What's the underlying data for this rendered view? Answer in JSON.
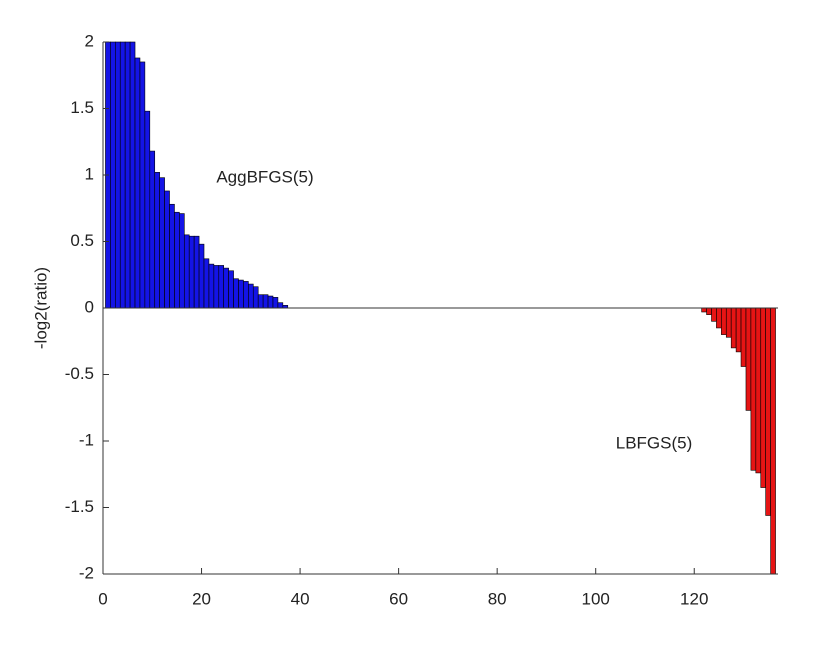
{
  "chart_data": {
    "type": "bar",
    "ylabel": "-log2(ratio)",
    "annotations": [
      "AggBFGS(5)",
      "LBFGS(5)"
    ],
    "x": [
      1,
      2,
      3,
      4,
      5,
      6,
      7,
      8,
      9,
      10,
      11,
      12,
      13,
      14,
      15,
      16,
      17,
      18,
      19,
      20,
      21,
      22,
      23,
      24,
      25,
      26,
      27,
      28,
      29,
      30,
      31,
      32,
      33,
      34,
      35,
      36,
      37,
      38,
      39,
      40,
      41,
      42,
      43,
      44,
      45,
      46,
      47,
      48,
      49,
      50,
      51,
      52,
      53,
      54,
      55,
      56,
      57,
      58,
      59,
      60,
      61,
      62,
      63,
      64,
      65,
      66,
      67,
      68,
      69,
      70,
      71,
      72,
      73,
      74,
      75,
      76,
      77,
      78,
      79,
      80,
      81,
      82,
      83,
      84,
      85,
      86,
      87,
      88,
      89,
      90,
      91,
      92,
      93,
      94,
      95,
      96,
      97,
      98,
      99,
      100,
      101,
      102,
      103,
      104,
      105,
      106,
      107,
      108,
      109,
      110,
      111,
      112,
      113,
      114,
      115,
      116,
      117,
      118,
      119,
      120,
      121,
      122,
      123,
      124,
      125,
      126,
      127,
      128,
      129,
      130,
      131,
      132,
      133,
      134,
      135,
      136
    ],
    "values": [
      2,
      2,
      2,
      2,
      2,
      2,
      1.88,
      1.85,
      1.48,
      1.18,
      1.02,
      0.98,
      0.88,
      0.78,
      0.72,
      0.71,
      0.55,
      0.54,
      0.54,
      0.48,
      0.37,
      0.33,
      0.32,
      0.32,
      0.3,
      0.28,
      0.22,
      0.21,
      0.2,
      0.18,
      0.16,
      0.1,
      0.1,
      0.09,
      0.08,
      0.04,
      0.02,
      0,
      0,
      0,
      0,
      0,
      0,
      0,
      0,
      0,
      0,
      0,
      0,
      0,
      0,
      0,
      0,
      0,
      0,
      0,
      0,
      0,
      0,
      0,
      0,
      0,
      0,
      0,
      0,
      0,
      0,
      0,
      0,
      0,
      0,
      0,
      0,
      0,
      0,
      0,
      0,
      0,
      0,
      0,
      0,
      0,
      0,
      0,
      0,
      0,
      0,
      0,
      0,
      0,
      0,
      0,
      0,
      0,
      0,
      0,
      0,
      0,
      0,
      0,
      0,
      0,
      0,
      0,
      0,
      0,
      0,
      0,
      0,
      0,
      0,
      0,
      0,
      0,
      0,
      0,
      0,
      0,
      0,
      0,
      0,
      -0.03,
      -0.05,
      -0.1,
      -0.15,
      -0.2,
      -0.22,
      -0.3,
      -0.33,
      -0.44,
      -0.77,
      -1.22,
      -1.24,
      -1.35,
      -1.56,
      -2
    ],
    "positive_color": "#1414e6",
    "negative_color": "#e61414",
    "xlim": [
      0,
      137
    ],
    "xticks": [
      0,
      20,
      40,
      60,
      80,
      100,
      120
    ],
    "ylim": [
      -2,
      2
    ],
    "yticks": [
      -2,
      -1.5,
      -1,
      -0.5,
      0,
      0.5,
      1,
      1.5,
      2
    ],
    "grid": false
  }
}
